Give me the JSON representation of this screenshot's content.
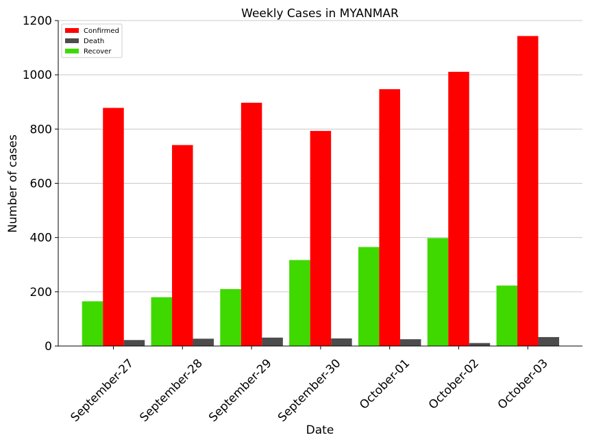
{
  "chart_data": {
    "type": "bar",
    "title": "Weekly Cases in MYANMAR",
    "xlabel": "Date",
    "ylabel": "Number of cases",
    "categories": [
      "September-27",
      "September-28",
      "September-29",
      "September-30",
      "October-01",
      "October-02",
      "October-03"
    ],
    "ylim": [
      0,
      1200
    ],
    "yticks": [
      "0",
      "200",
      "400",
      "600",
      "800",
      "1000",
      "1200"
    ],
    "grid": "horizontal",
    "legend_position": "top-left",
    "series": [
      {
        "name": "Recover",
        "color": "#3fd900",
        "values": [
          165,
          180,
          210,
          317,
          365,
          398,
          223
        ]
      },
      {
        "name": "Confirmed",
        "color": "#ff0000",
        "values": [
          878,
          741,
          897,
          793,
          947,
          1011,
          1143
        ]
      },
      {
        "name": "Death",
        "color": "#4c4c4c",
        "values": [
          22,
          27,
          31,
          28,
          25,
          11,
          33
        ]
      }
    ],
    "legend_order": [
      "Confirmed",
      "Death",
      "Recover"
    ]
  }
}
